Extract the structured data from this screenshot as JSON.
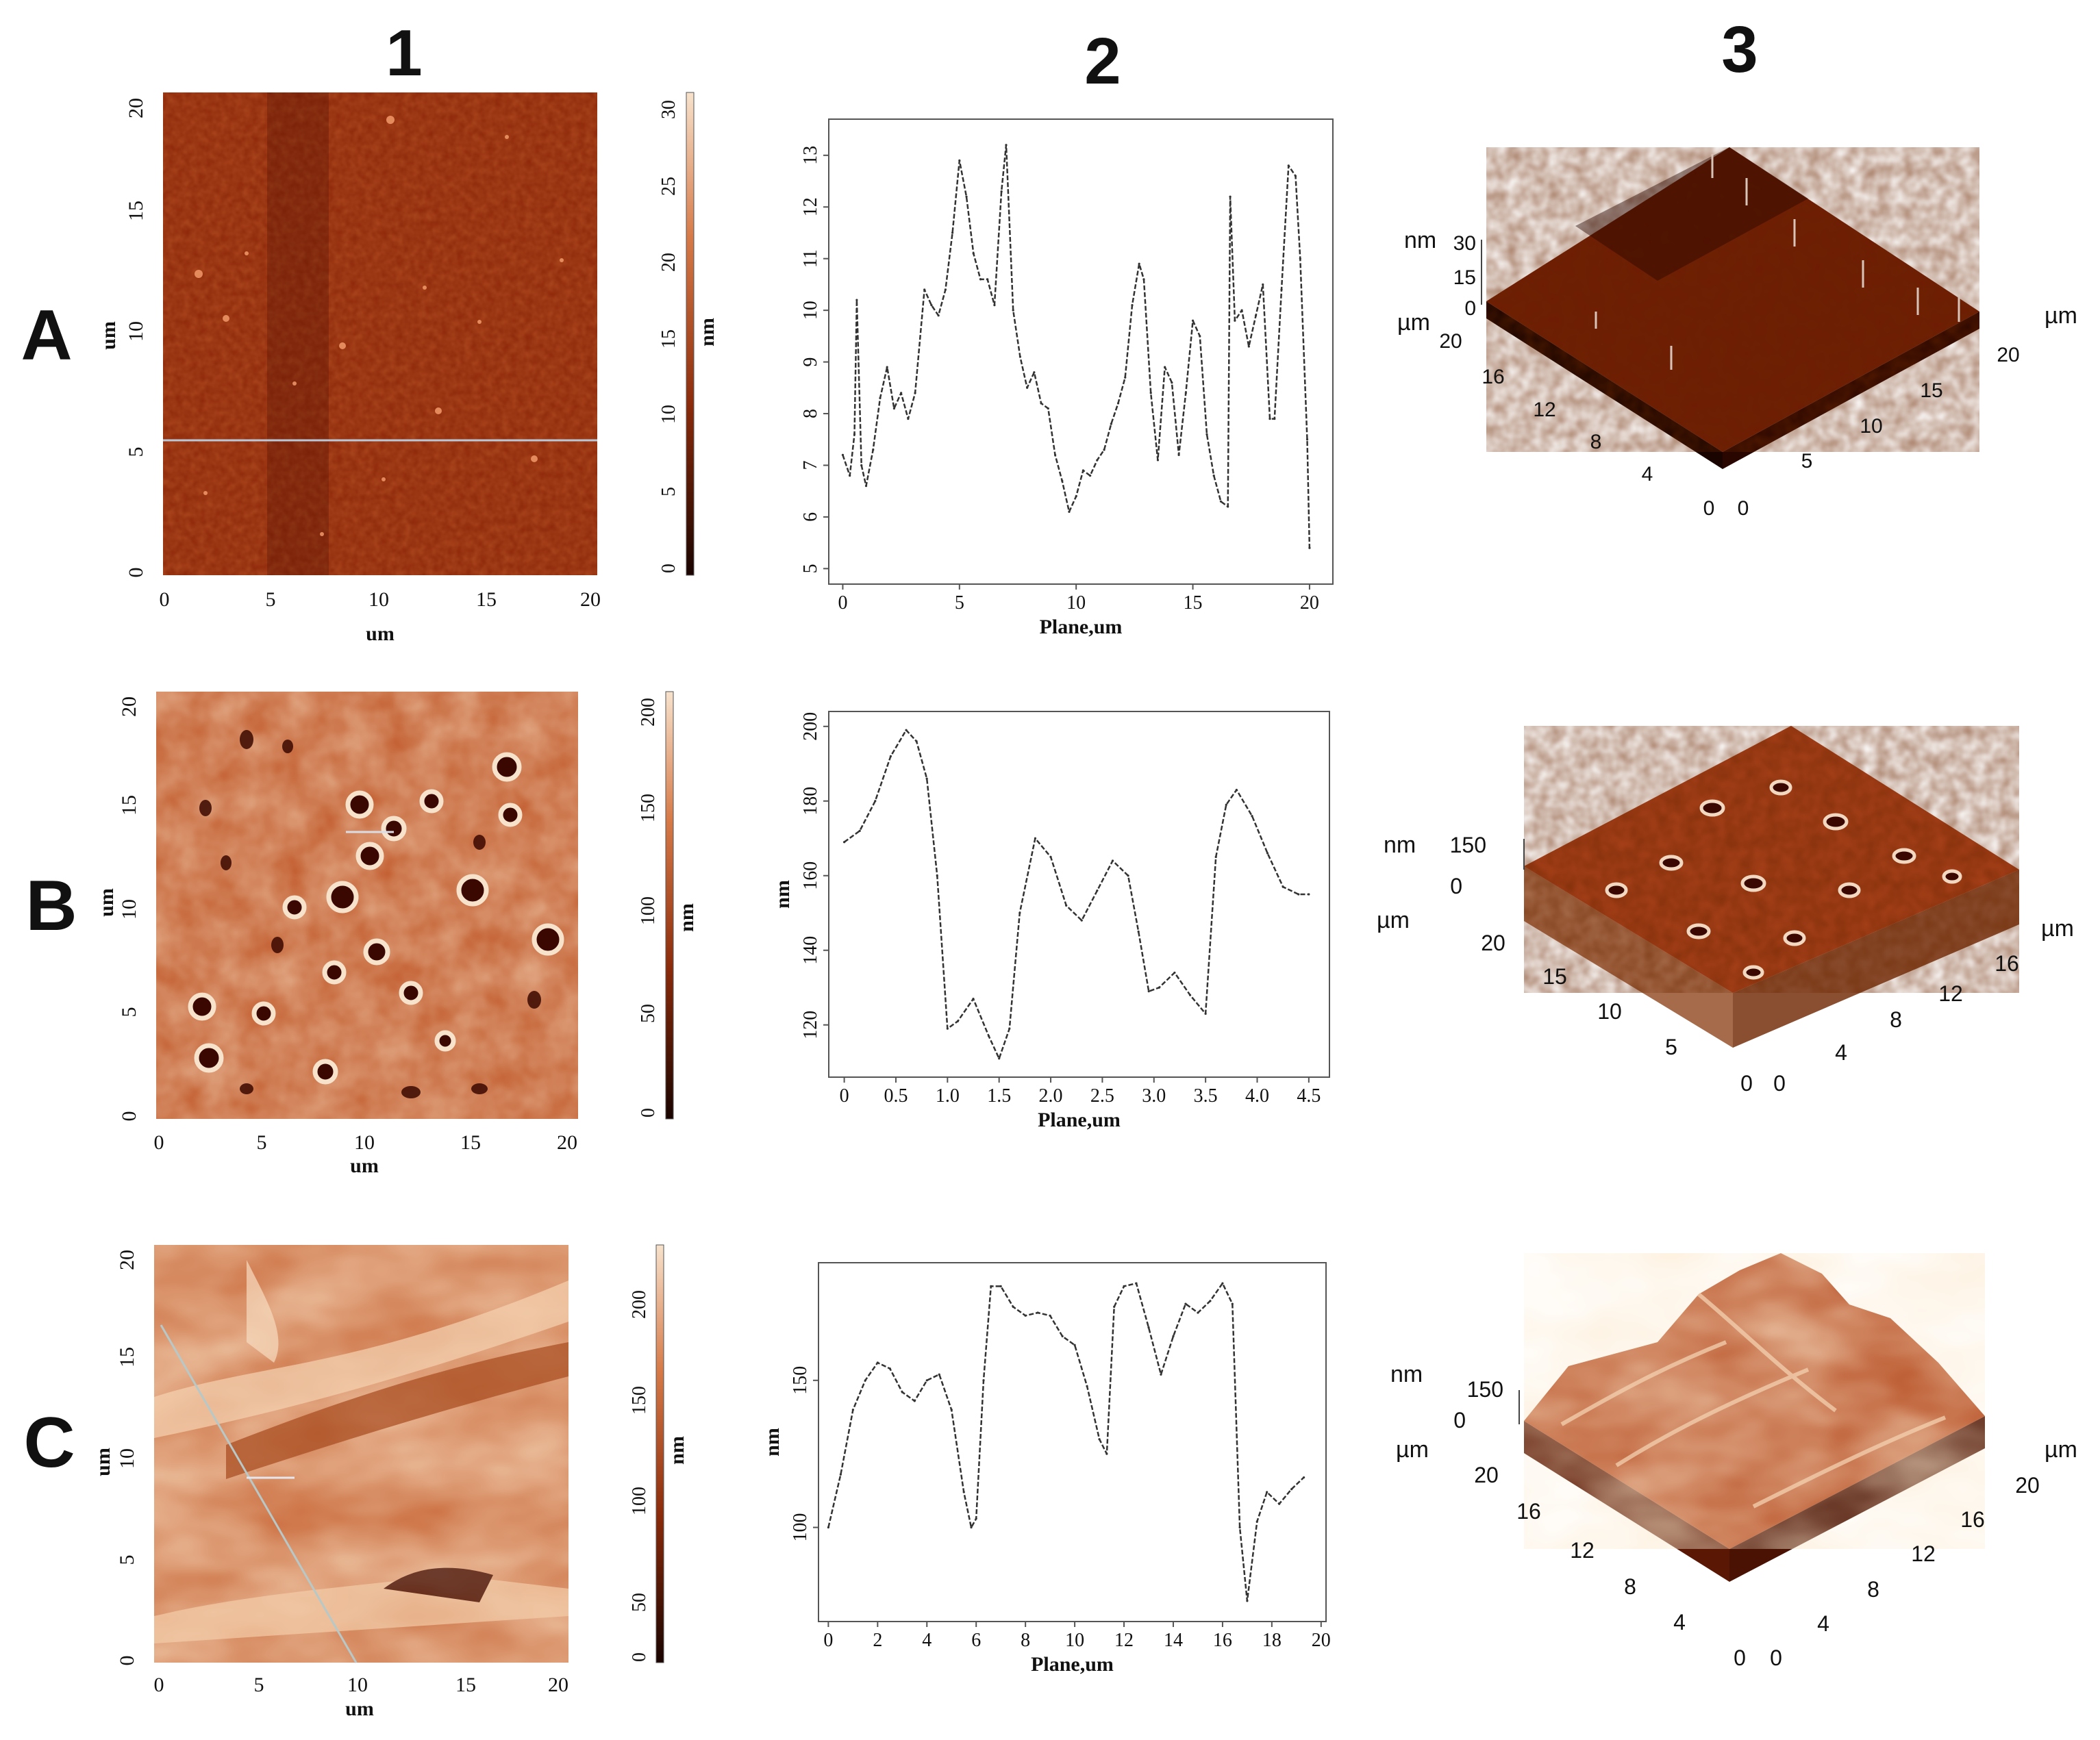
{
  "column_headers": [
    "1",
    "2",
    "3"
  ],
  "row_labels": [
    "A",
    "B",
    "C"
  ],
  "colors": {
    "map_dark": "#3a0800",
    "map_mid": "#b5461a",
    "map_light": "#f6d6b6",
    "profile_line": "#333333"
  },
  "panels": [
    {
      "row": "A",
      "map": {
        "x_ticks": [
          "0",
          "5",
          "10",
          "15",
          "20"
        ],
        "y_ticks": [
          "0",
          "5",
          "10",
          "15",
          "20"
        ],
        "xlabel": "um",
        "ylabel": "um",
        "colorbar_ticks": [
          "0",
          "5",
          "10",
          "15",
          "20",
          "25",
          "30"
        ],
        "colorbar_label": "nm"
      },
      "surface": {
        "z_label": "nm",
        "z_ticks": [
          "30",
          "15",
          "0"
        ],
        "left_axis_label": "µm",
        "left_axis_ticks": [
          "20",
          "16",
          "12",
          "8",
          "4",
          "0"
        ],
        "right_axis_label": "µm",
        "right_axis_ticks": [
          "0",
          "5",
          "10",
          "15",
          "20"
        ]
      }
    },
    {
      "row": "B",
      "map": {
        "x_ticks": [
          "0",
          "5",
          "10",
          "15",
          "20"
        ],
        "y_ticks": [
          "0",
          "5",
          "10",
          "15",
          "20"
        ],
        "xlabel": "um",
        "ylabel": "um",
        "colorbar_ticks": [
          "0",
          "50",
          "100",
          "150",
          "200"
        ],
        "colorbar_label": "nm"
      },
      "surface": {
        "z_label": "nm",
        "z_ticks": [
          "150",
          "0"
        ],
        "left_axis_label": "µm",
        "left_axis_ticks": [
          "20",
          "15",
          "10",
          "5",
          "0"
        ],
        "right_axis_label": "µm",
        "right_axis_ticks": [
          "0",
          "4",
          "8",
          "12",
          "16"
        ]
      }
    },
    {
      "row": "C",
      "map": {
        "x_ticks": [
          "0",
          "5",
          "10",
          "15",
          "20"
        ],
        "y_ticks": [
          "0",
          "5",
          "10",
          "15",
          "20"
        ],
        "xlabel": "um",
        "ylabel": "um",
        "colorbar_ticks": [
          "0",
          "50",
          "100",
          "150",
          "200"
        ],
        "colorbar_label": "nm"
      },
      "surface": {
        "z_label": "nm",
        "z_ticks": [
          "150",
          "0"
        ],
        "left_axis_label": "µm",
        "left_axis_ticks": [
          "20",
          "16",
          "12",
          "8",
          "4",
          "0"
        ],
        "right_axis_label": "µm",
        "right_axis_ticks": [
          "0",
          "4",
          "8",
          "12",
          "16",
          "20"
        ]
      }
    }
  ],
  "chart_data": [
    {
      "type": "line",
      "panel": "A2",
      "xlabel": "Plane,um",
      "ylabel": "",
      "xlim": [
        -0.6,
        21
      ],
      "ylim": [
        4.7,
        13.7
      ],
      "x_ticks": [
        0,
        5,
        10,
        15,
        20
      ],
      "y_ticks": [
        5,
        6,
        7,
        8,
        9,
        10,
        11,
        12,
        13
      ],
      "x": [
        0,
        0.3,
        0.5,
        0.6,
        0.8,
        1.0,
        1.3,
        1.6,
        1.9,
        2.2,
        2.5,
        2.8,
        3.1,
        3.5,
        3.8,
        4.1,
        4.4,
        4.7,
        5.0,
        5.3,
        5.6,
        5.9,
        6.2,
        6.5,
        6.8,
        7.0,
        7.3,
        7.6,
        7.9,
        8.2,
        8.5,
        8.8,
        9.1,
        9.4,
        9.7,
        10.0,
        10.3,
        10.6,
        10.9,
        11.2,
        11.5,
        11.8,
        12.1,
        12.4,
        12.7,
        12.9,
        13.2,
        13.5,
        13.8,
        14.1,
        14.4,
        14.7,
        15.0,
        15.3,
        15.6,
        15.9,
        16.2,
        16.5,
        16.6,
        16.8,
        17.1,
        17.4,
        17.7,
        18.0,
        18.3,
        18.5,
        18.8,
        19.1,
        19.4,
        19.6,
        19.9,
        20.0
      ],
      "y": [
        7.2,
        6.8,
        7.6,
        10.2,
        7.0,
        6.6,
        7.3,
        8.3,
        8.9,
        8.1,
        8.4,
        7.9,
        8.4,
        10.4,
        10.1,
        9.9,
        10.4,
        11.5,
        12.9,
        12.2,
        11.1,
        10.6,
        10.6,
        10.1,
        12.3,
        13.2,
        10.0,
        9.1,
        8.5,
        8.8,
        8.2,
        8.1,
        7.2,
        6.7,
        6.1,
        6.4,
        6.9,
        6.8,
        7.1,
        7.3,
        7.8,
        8.2,
        8.7,
        10.1,
        10.9,
        10.6,
        8.4,
        7.1,
        8.9,
        8.6,
        7.2,
        8.4,
        9.8,
        9.5,
        7.6,
        6.8,
        6.3,
        6.2,
        12.2,
        9.8,
        10.0,
        9.3,
        9.9,
        10.5,
        7.9,
        7.9,
        10.4,
        12.8,
        12.6,
        11.0,
        7.5,
        5.4
      ]
    },
    {
      "type": "line",
      "panel": "B2",
      "xlabel": "Plane,um",
      "ylabel": "nm",
      "xlim": [
        -0.15,
        4.7
      ],
      "ylim": [
        106,
        204
      ],
      "x_ticks": [
        0,
        0.5,
        1.0,
        1.5,
        2.0,
        2.5,
        3.0,
        3.5,
        4.0,
        4.5
      ],
      "x_tick_labels": [
        "0",
        "0.5",
        "1.0",
        "1.5",
        "2.0",
        "2.5",
        "3.0",
        "3.5",
        "4.0",
        "4.5"
      ],
      "y_ticks": [
        120,
        140,
        160,
        180,
        200
      ],
      "x": [
        0,
        0.15,
        0.3,
        0.45,
        0.6,
        0.7,
        0.8,
        0.9,
        1.0,
        1.1,
        1.25,
        1.4,
        1.5,
        1.6,
        1.7,
        1.85,
        2.0,
        2.15,
        2.3,
        2.45,
        2.6,
        2.75,
        2.85,
        2.95,
        3.05,
        3.2,
        3.35,
        3.5,
        3.6,
        3.7,
        3.8,
        3.95,
        4.1,
        4.25,
        4.4,
        4.5
      ],
      "y": [
        169,
        172,
        180,
        192,
        199,
        196,
        186,
        160,
        119,
        121,
        127,
        117,
        111,
        119,
        150,
        170,
        165,
        152,
        148,
        156,
        164,
        160,
        145,
        129,
        130,
        134,
        128,
        123,
        165,
        179,
        183,
        176,
        166,
        157,
        155,
        155
      ]
    },
    {
      "type": "line",
      "panel": "C2",
      "xlabel": "Plane,um",
      "ylabel": "nm",
      "xlim": [
        -0.4,
        20.2
      ],
      "ylim": [
        68,
        190
      ],
      "x_ticks": [
        0,
        2,
        4,
        6,
        8,
        10,
        12,
        14,
        16,
        18,
        20
      ],
      "y_ticks": [
        100,
        150
      ],
      "x": [
        0,
        0.5,
        1.0,
        1.5,
        2.0,
        2.5,
        3.0,
        3.5,
        4.0,
        4.5,
        5.0,
        5.5,
        5.8,
        6.0,
        6.3,
        6.6,
        7.0,
        7.5,
        8.0,
        8.5,
        9.0,
        9.5,
        10.0,
        10.5,
        11.0,
        11.3,
        11.6,
        12.0,
        12.5,
        13.0,
        13.5,
        14.0,
        14.5,
        15.0,
        15.5,
        16.0,
        16.4,
        16.7,
        17.0,
        17.4,
        17.8,
        18.3,
        18.8,
        19.3
      ],
      "y": [
        100,
        118,
        140,
        150,
        156,
        154,
        146,
        143,
        150,
        152,
        140,
        112,
        100,
        103,
        150,
        182,
        182,
        175,
        172,
        173,
        172,
        165,
        162,
        148,
        130,
        125,
        175,
        182,
        183,
        168,
        152,
        165,
        176,
        173,
        177,
        183,
        176,
        100,
        75,
        102,
        112,
        108,
        113,
        117
      ]
    }
  ]
}
